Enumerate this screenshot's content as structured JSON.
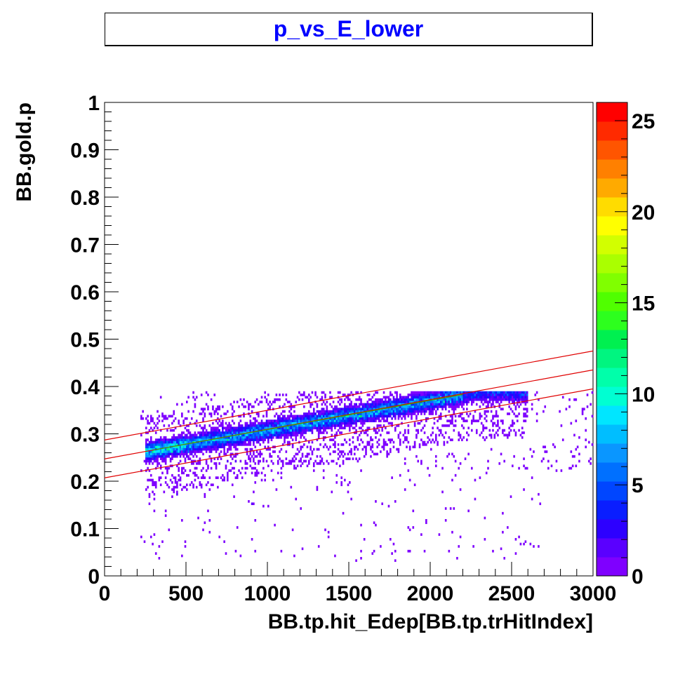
{
  "chart_data": {
    "type": "heatmap",
    "title": "p_vs_E_lower",
    "xlabel": "BB.tp.hit_Edep[BB.tp.trHitIndex]",
    "ylabel": "BB.gold.p",
    "xlim": [
      0,
      3000
    ],
    "ylim": [
      0,
      1
    ],
    "x_ticks": [
      "0",
      "500",
      "1000",
      "1500",
      "2000",
      "2500",
      "3000"
    ],
    "y_ticks": [
      "0",
      "0.1",
      "0.2",
      "0.3",
      "0.4",
      "0.5",
      "0.6",
      "0.7",
      "0.8",
      "0.9",
      "1"
    ],
    "colorbar": {
      "range": [
        0,
        26
      ],
      "ticks": [
        "0",
        "5",
        "10",
        "15",
        "20",
        "25"
      ],
      "colors": [
        "#7f00ff",
        "#5a00ff",
        "#2d00ff",
        "#0a1eff",
        "#0046ff",
        "#0070ff",
        "#0a96ff",
        "#00beff",
        "#00e6ff",
        "#00ffd2",
        "#00ffaa",
        "#00f580",
        "#00f050",
        "#2dff1e",
        "#50ff00",
        "#80ff00",
        "#aaff00",
        "#d2ff00",
        "#ffff00",
        "#ffdc00",
        "#ffaa00",
        "#ff8000",
        "#ff5500",
        "#ff2a00",
        "#ff0000"
      ]
    },
    "band_lines": [
      {
        "name": "",
        "color": "#e00000",
        "points": [
          [
            0,
            0.287
          ],
          [
            3000,
            0.475
          ]
        ]
      },
      {
        "name": "",
        "color": "#e00000",
        "points": [
          [
            0,
            0.247
          ],
          [
            3000,
            0.435
          ]
        ]
      },
      {
        "name": "",
        "color": "#e00000",
        "points": [
          [
            0,
            0.207
          ],
          [
            3000,
            0.395
          ]
        ]
      }
    ],
    "band_fit_line": {
      "color": "#40a000",
      "points": [
        [
          300,
          0.266
        ],
        [
          2200,
          0.383
        ]
      ]
    },
    "population": {
      "core_trend": {
        "x_start": 250,
        "x_end": 2600,
        "y_at_start": 0.262,
        "y_cap": 0.387
      },
      "x_range": [
        200,
        3000
      ],
      "y_range": [
        0.02,
        0.39
      ],
      "max_count": 26
    }
  }
}
